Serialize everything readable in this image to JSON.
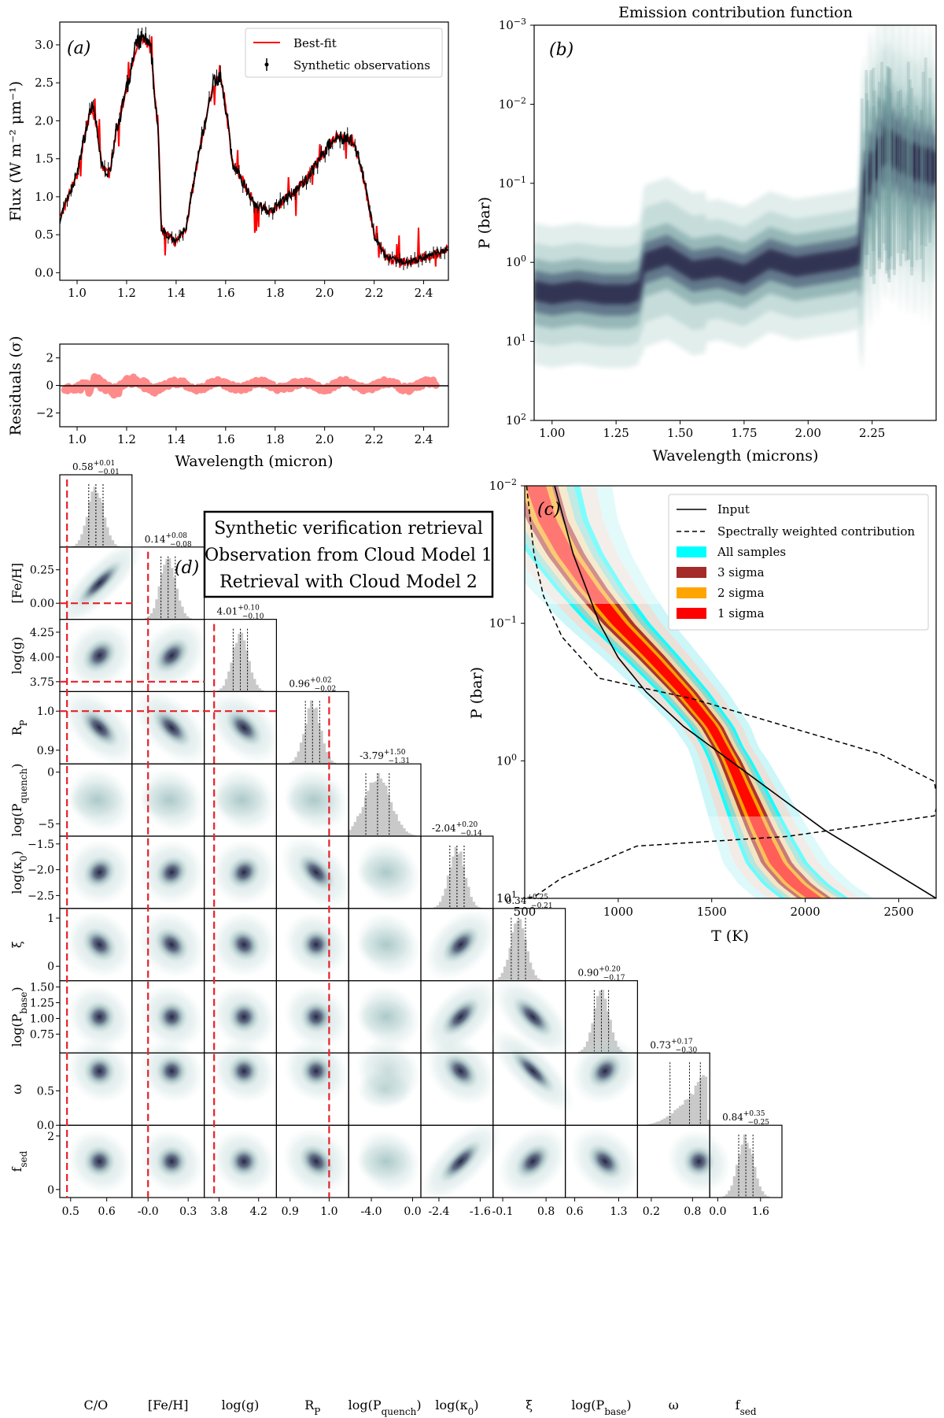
{
  "chart_data": [
    {
      "id": "a",
      "type": "line",
      "panel_label": "(a)",
      "ylabel": "Flux (W m⁻² μm⁻¹)",
      "xlim": [
        0.93,
        2.5
      ],
      "ylim": [
        -0.1,
        3.3
      ],
      "xticks": [
        "1.0",
        "1.2",
        "1.4",
        "1.6",
        "1.8",
        "2.0",
        "2.2",
        "2.4"
      ],
      "yticks": [
        "0.0",
        "0.5",
        "1.0",
        "1.5",
        "2.0",
        "2.5",
        "3.0"
      ],
      "legend": [
        "Best-fit",
        "Synthetic observations"
      ],
      "series": [
        {
          "name": "Synthetic observations",
          "color": "#000000",
          "x": [
            0.93,
            0.97,
            1.0,
            1.03,
            1.06,
            1.08,
            1.1,
            1.13,
            1.16,
            1.2,
            1.24,
            1.27,
            1.3,
            1.33,
            1.34,
            1.36,
            1.4,
            1.44,
            1.5,
            1.55,
            1.58,
            1.6,
            1.63,
            1.67,
            1.72,
            1.78,
            1.85,
            1.92,
            2.0,
            2.05,
            2.1,
            2.13,
            2.16,
            2.2,
            2.25,
            2.3,
            2.35,
            2.4,
            2.45,
            2.5
          ],
          "y": [
            0.7,
            1.05,
            1.3,
            1.8,
            2.2,
            1.9,
            1.4,
            1.3,
            1.9,
            2.4,
            3.0,
            3.1,
            2.9,
            1.7,
            0.6,
            0.5,
            0.4,
            0.6,
            1.7,
            2.5,
            2.6,
            2.2,
            1.4,
            1.2,
            0.9,
            0.8,
            1.0,
            1.2,
            1.6,
            1.8,
            1.75,
            1.6,
            1.2,
            0.5,
            0.2,
            0.15,
            0.15,
            0.2,
            0.25,
            0.3
          ]
        }
      ]
    },
    {
      "id": "a-res",
      "type": "scatter",
      "ylabel": "Residuals (σ)",
      "xlabel": "Wavelength (micron)",
      "xlim": [
        0.93,
        2.5
      ],
      "ylim": [
        -3,
        3
      ],
      "xticks": [
        "1.0",
        "1.2",
        "1.4",
        "1.6",
        "1.8",
        "2.0",
        "2.2",
        "2.4"
      ],
      "yticks": [
        "−2",
        "0",
        "2"
      ]
    },
    {
      "id": "b",
      "type": "heatmap",
      "title": "Emission contribution function",
      "panel_label": "(b)",
      "xlabel": "Wavelength (microns)",
      "ylabel": "P (bar)",
      "xlim": [
        0.93,
        2.5
      ],
      "xticks": [
        "1.00",
        "1.25",
        "1.50",
        "1.75",
        "2.00",
        "2.25"
      ],
      "yticks": [
        [
          "10",
          "−3"
        ],
        [
          "10",
          "−2"
        ],
        [
          "10",
          "−1"
        ],
        [
          "10",
          "0"
        ],
        [
          "10",
          "1"
        ],
        [
          "10",
          "2"
        ]
      ],
      "ridge": {
        "x": [
          0.93,
          1.0,
          1.1,
          1.2,
          1.3,
          1.34,
          1.36,
          1.45,
          1.55,
          1.65,
          1.75,
          1.85,
          1.95,
          2.05,
          2.15,
          2.2,
          2.22,
          2.3,
          2.4,
          2.5
        ],
        "log10P": [
          0.35,
          0.4,
          0.35,
          0.4,
          0.4,
          0.35,
          0.0,
          -0.1,
          0.1,
          0.05,
          0.15,
          -0.05,
          0.05,
          0.0,
          -0.05,
          -0.1,
          -1.0,
          -1.5,
          -1.3,
          -1.2
        ]
      }
    },
    {
      "id": "c",
      "type": "line",
      "panel_label": "(c)",
      "xlabel": "T (K)",
      "ylabel": "P (bar)",
      "xlim": [
        500,
        2700
      ],
      "log10_ylim": [
        -2,
        1
      ],
      "xticks": [
        "500",
        "1000",
        "1500",
        "2000",
        "2500"
      ],
      "yticks": [
        [
          "10",
          "−2"
        ],
        [
          "10",
          "−1"
        ],
        [
          "10",
          "0"
        ],
        [
          "10",
          "1"
        ]
      ],
      "legend": [
        "Input",
        "Spectrally weighted contribution",
        "All samples",
        "3 sigma",
        "2 sigma",
        "1 sigma"
      ],
      "legend_colors": [
        "#000000",
        "#000000",
        "#00ffff",
        "#a52a2a",
        "#ffa500",
        "#ff0000"
      ],
      "input_profile": {
        "T": [
          660,
          700,
          760,
          830,
          900,
          1000,
          1150,
          1350,
          1600,
          1850,
          2100,
          2400,
          2700
        ],
        "log10P": [
          -2,
          -1.8,
          -1.5,
          -1.25,
          -1.0,
          -0.75,
          -0.5,
          -0.25,
          0.0,
          0.25,
          0.5,
          0.75,
          1.0
        ]
      },
      "median_profile": {
        "T": [
          560,
          620,
          720,
          850,
          1000,
          1180,
          1350,
          1500,
          1600,
          1680,
          1760,
          1850,
          1950,
          2050
        ],
        "log10P": [
          -2,
          -1.75,
          -1.5,
          -1.25,
          -1.0,
          -0.75,
          -0.5,
          -0.25,
          0.0,
          0.25,
          0.5,
          0.75,
          0.9,
          1.0
        ]
      },
      "contribution": {
        "T": [
          510,
          550,
          600,
          700,
          900,
          1400,
          2400,
          2690,
          2710,
          2690,
          1900,
          1100,
          700,
          560,
          520
        ],
        "log10P": [
          -2,
          -1.5,
          -1.2,
          -0.9,
          -0.6,
          -0.45,
          -0.05,
          0.15,
          0.3,
          0.4,
          0.55,
          0.62,
          0.85,
          0.98,
          1.0
        ]
      }
    },
    {
      "id": "d",
      "type": "scatter",
      "panel_label": "(d)",
      "subtype": "corner",
      "annotation": [
        "Synthetic verification retrieval",
        "Observation from Cloud Model 1",
        "Retrieval with Cloud Model 2"
      ],
      "parameters": [
        {
          "label": "C/O",
          "median": "0.58",
          "plus": "+0.01",
          "minus": "−0.01",
          "range": [
            0.47,
            0.67
          ],
          "truth": 0.49,
          "xticks": [
            [
              "0.5",
              0.5
            ],
            [
              "0.6",
              0.6
            ]
          ]
        },
        {
          "label": "[Fe/H]",
          "median": "0.14",
          "plus": "+0.08",
          "minus": "−0.08",
          "range": [
            -0.12,
            0.42
          ],
          "truth": 0.0,
          "xticks": [
            [
              "-0.0",
              0.0
            ],
            [
              "0.3",
              0.3
            ]
          ],
          "yticks": [
            [
              "0.00",
              0.0
            ],
            [
              "0.25",
              0.25
            ]
          ]
        },
        {
          "label": "log(g)",
          "median": "4.01",
          "plus": "+0.10",
          "minus": "−0.10",
          "range": [
            3.65,
            4.38
          ],
          "truth": 3.75,
          "xticks": [
            [
              "3.8",
              3.8
            ],
            [
              "4.2",
              4.2
            ]
          ],
          "yticks": [
            [
              "3.75",
              3.75
            ],
            [
              "4.00",
              4.0
            ],
            [
              "4.25",
              4.25
            ]
          ]
        },
        {
          "label": "R_P",
          "median": "0.96",
          "plus": "+0.02",
          "minus": "−0.02",
          "range": [
            0.865,
            1.05
          ],
          "truth": 1.0,
          "xticks": [
            [
              "0.9",
              0.9
            ],
            [
              "1.0",
              1.0
            ]
          ],
          "yticks": [
            [
              "0.9",
              0.9
            ],
            [
              "1.0",
              1.0
            ]
          ]
        },
        {
          "label": "log(P_quench)",
          "median": "-3.79",
          "plus": "+1.50",
          "minus": "−1.31",
          "range": [
            -6.2,
            0.8
          ],
          "xticks": [
            [
              "-4.0",
              -4.0
            ],
            [
              "0.0",
              0.0
            ]
          ],
          "yticks": [
            [
              "−5",
              -5
            ],
            [
              "0",
              0
            ]
          ]
        },
        {
          "label": "log(κ_0)",
          "median": "-2.04",
          "plus": "+0.20",
          "minus": "−0.14",
          "range": [
            -2.75,
            -1.35
          ],
          "xticks": [
            [
              "-2.4",
              -2.4
            ],
            [
              "-1.6",
              -1.6
            ]
          ],
          "yticks": [
            [
              "−2.5",
              -2.5
            ],
            [
              "−2.0",
              -2.0
            ],
            [
              "−1.5",
              -1.5
            ]
          ]
        },
        {
          "label": "ξ",
          "median": "0.34",
          "plus": "+0.25",
          "minus": "−0.21",
          "range": [
            -0.3,
            1.2
          ],
          "xticks": [
            [
              "-0.1",
              -0.1
            ],
            [
              "0.8",
              0.8
            ]
          ],
          "yticks": [
            [
              "0",
              0
            ],
            [
              "1",
              1
            ]
          ]
        },
        {
          "label": "log(P_base)",
          "median": "0.90",
          "plus": "+0.20",
          "minus": "−0.17",
          "range": [
            0.45,
            1.6
          ],
          "xticks": [
            [
              "0.6",
              0.6
            ],
            [
              "1.3",
              1.3
            ]
          ],
          "yticks": [
            [
              "0.75",
              0.75
            ],
            [
              "1.00",
              1.0
            ],
            [
              "1.25",
              1.25
            ],
            [
              "1.50",
              1.5
            ]
          ]
        },
        {
          "label": "ω",
          "median": "0.73",
          "plus": "+0.17",
          "minus": "−0.30",
          "range": [
            0.0,
            1.05
          ],
          "xticks": [
            [
              "0.2",
              0.2
            ],
            [
              "0.8",
              0.8
            ]
          ],
          "yticks": [
            [
              "0.0",
              0.0
            ],
            [
              "0.5",
              0.5
            ]
          ]
        },
        {
          "label": "f_sed",
          "median": "0.84",
          "plus": "+0.35",
          "minus": "−0.25",
          "range": [
            -0.3,
            2.4
          ],
          "xticks": [
            [
              "0.0",
              0.0
            ],
            [
              "1.6",
              1.6
            ]
          ],
          "yticks": [
            [
              "0",
              0
            ],
            [
              "2",
              2
            ]
          ]
        }
      ],
      "correlations": [
        [
          0
        ],
        [
          0.9,
          0
        ],
        [
          0.2,
          0.3,
          0
        ],
        [
          -0.5,
          -0.5,
          -0.4,
          0
        ],
        [
          0,
          0,
          0,
          0,
          0
        ],
        [
          0.1,
          0.1,
          0.1,
          -0.4,
          0,
          0
        ],
        [
          -0.2,
          -0.2,
          -0.1,
          0,
          0,
          0.4,
          0
        ],
        [
          0,
          0,
          0,
          0,
          0,
          0.5,
          -0.6,
          0
        ],
        [
          0,
          0,
          0,
          0,
          0,
          -0.3,
          -0.8,
          0.2,
          0
        ],
        [
          0,
          0,
          0,
          -0.2,
          0,
          0.7,
          0.3,
          -0.3,
          0,
          0
        ]
      ]
    }
  ]
}
